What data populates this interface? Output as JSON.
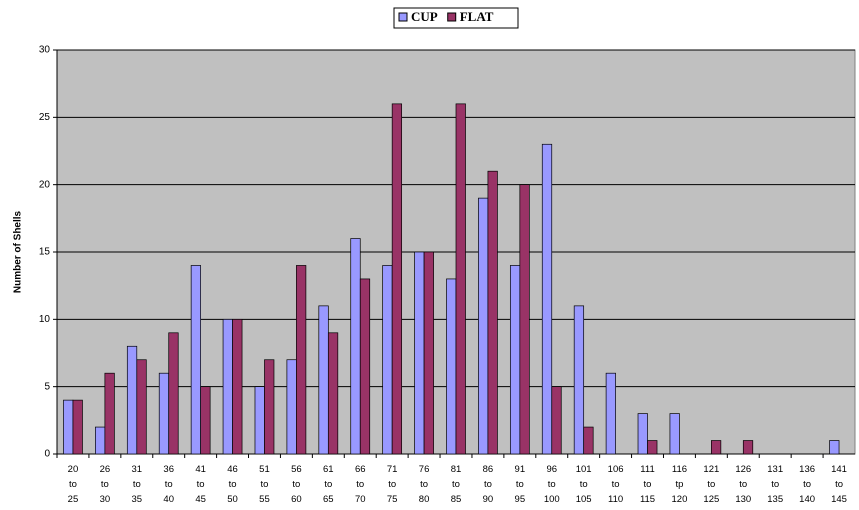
{
  "chart_data": {
    "type": "bar",
    "y_label": "Number of Shells",
    "categories": [
      "20\nto\n25",
      "26\nto\n30",
      "31\nto\n35",
      "36\nto\n40",
      "41\nto\n45",
      "46\nto\n50",
      "51\nto\n55",
      "56\nto\n60",
      "61\nto\n65",
      "66\nto\n70",
      "71\nto\n75",
      "76\nto\n80",
      "81\nto\n85",
      "86\nto\n90",
      "91\nto\n95",
      "96\nto\n100",
      "101\nto\n105",
      "106\nto\n110",
      "111\nto\n115",
      "116\ntp\n120",
      "121\nto\n125",
      "126\nto\n130",
      "131\nto\n135",
      "136\nto\n140",
      "141\nto\n145"
    ],
    "series": [
      {
        "name": "CUP",
        "color": "#9999ff",
        "values": [
          4,
          2,
          8,
          6,
          14,
          10,
          5,
          7,
          11,
          16,
          14,
          15,
          13,
          19,
          14,
          23,
          11,
          6,
          3,
          3,
          0,
          0,
          0,
          0,
          1
        ]
      },
      {
        "name": "FLAT",
        "color": "#993366",
        "values": [
          4,
          6,
          7,
          9,
          5,
          10,
          7,
          14,
          9,
          13,
          26,
          15,
          26,
          21,
          20,
          5,
          2,
          0,
          1,
          0,
          1,
          1,
          0,
          0,
          0
        ]
      }
    ],
    "ylim": [
      0,
      30
    ],
    "yticks": [
      0,
      5,
      10,
      15,
      20,
      25,
      30
    ],
    "grid": true,
    "legend": "top",
    "background": "#c0c0c0"
  }
}
